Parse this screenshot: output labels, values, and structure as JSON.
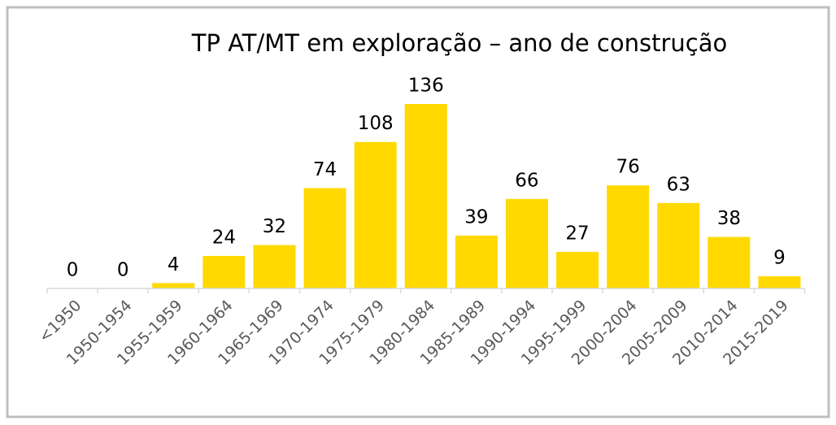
{
  "chart_data": {
    "type": "bar",
    "title": "TP AT/MT em exploração – ano de construção",
    "categories": [
      "<1950",
      "1950-1954",
      "1955-1959",
      "1960-1964",
      "1965-1969",
      "1970-1974",
      "1975-1979",
      "1980-1984",
      "1985-1989",
      "1990-1994",
      "1995-1999",
      "2000-2004",
      "2005-2009",
      "2010-2014",
      "2015-2019"
    ],
    "values": [
      0,
      0,
      4,
      24,
      32,
      74,
      108,
      136,
      39,
      66,
      27,
      76,
      63,
      38,
      9
    ],
    "color": "#ffd900"
  }
}
